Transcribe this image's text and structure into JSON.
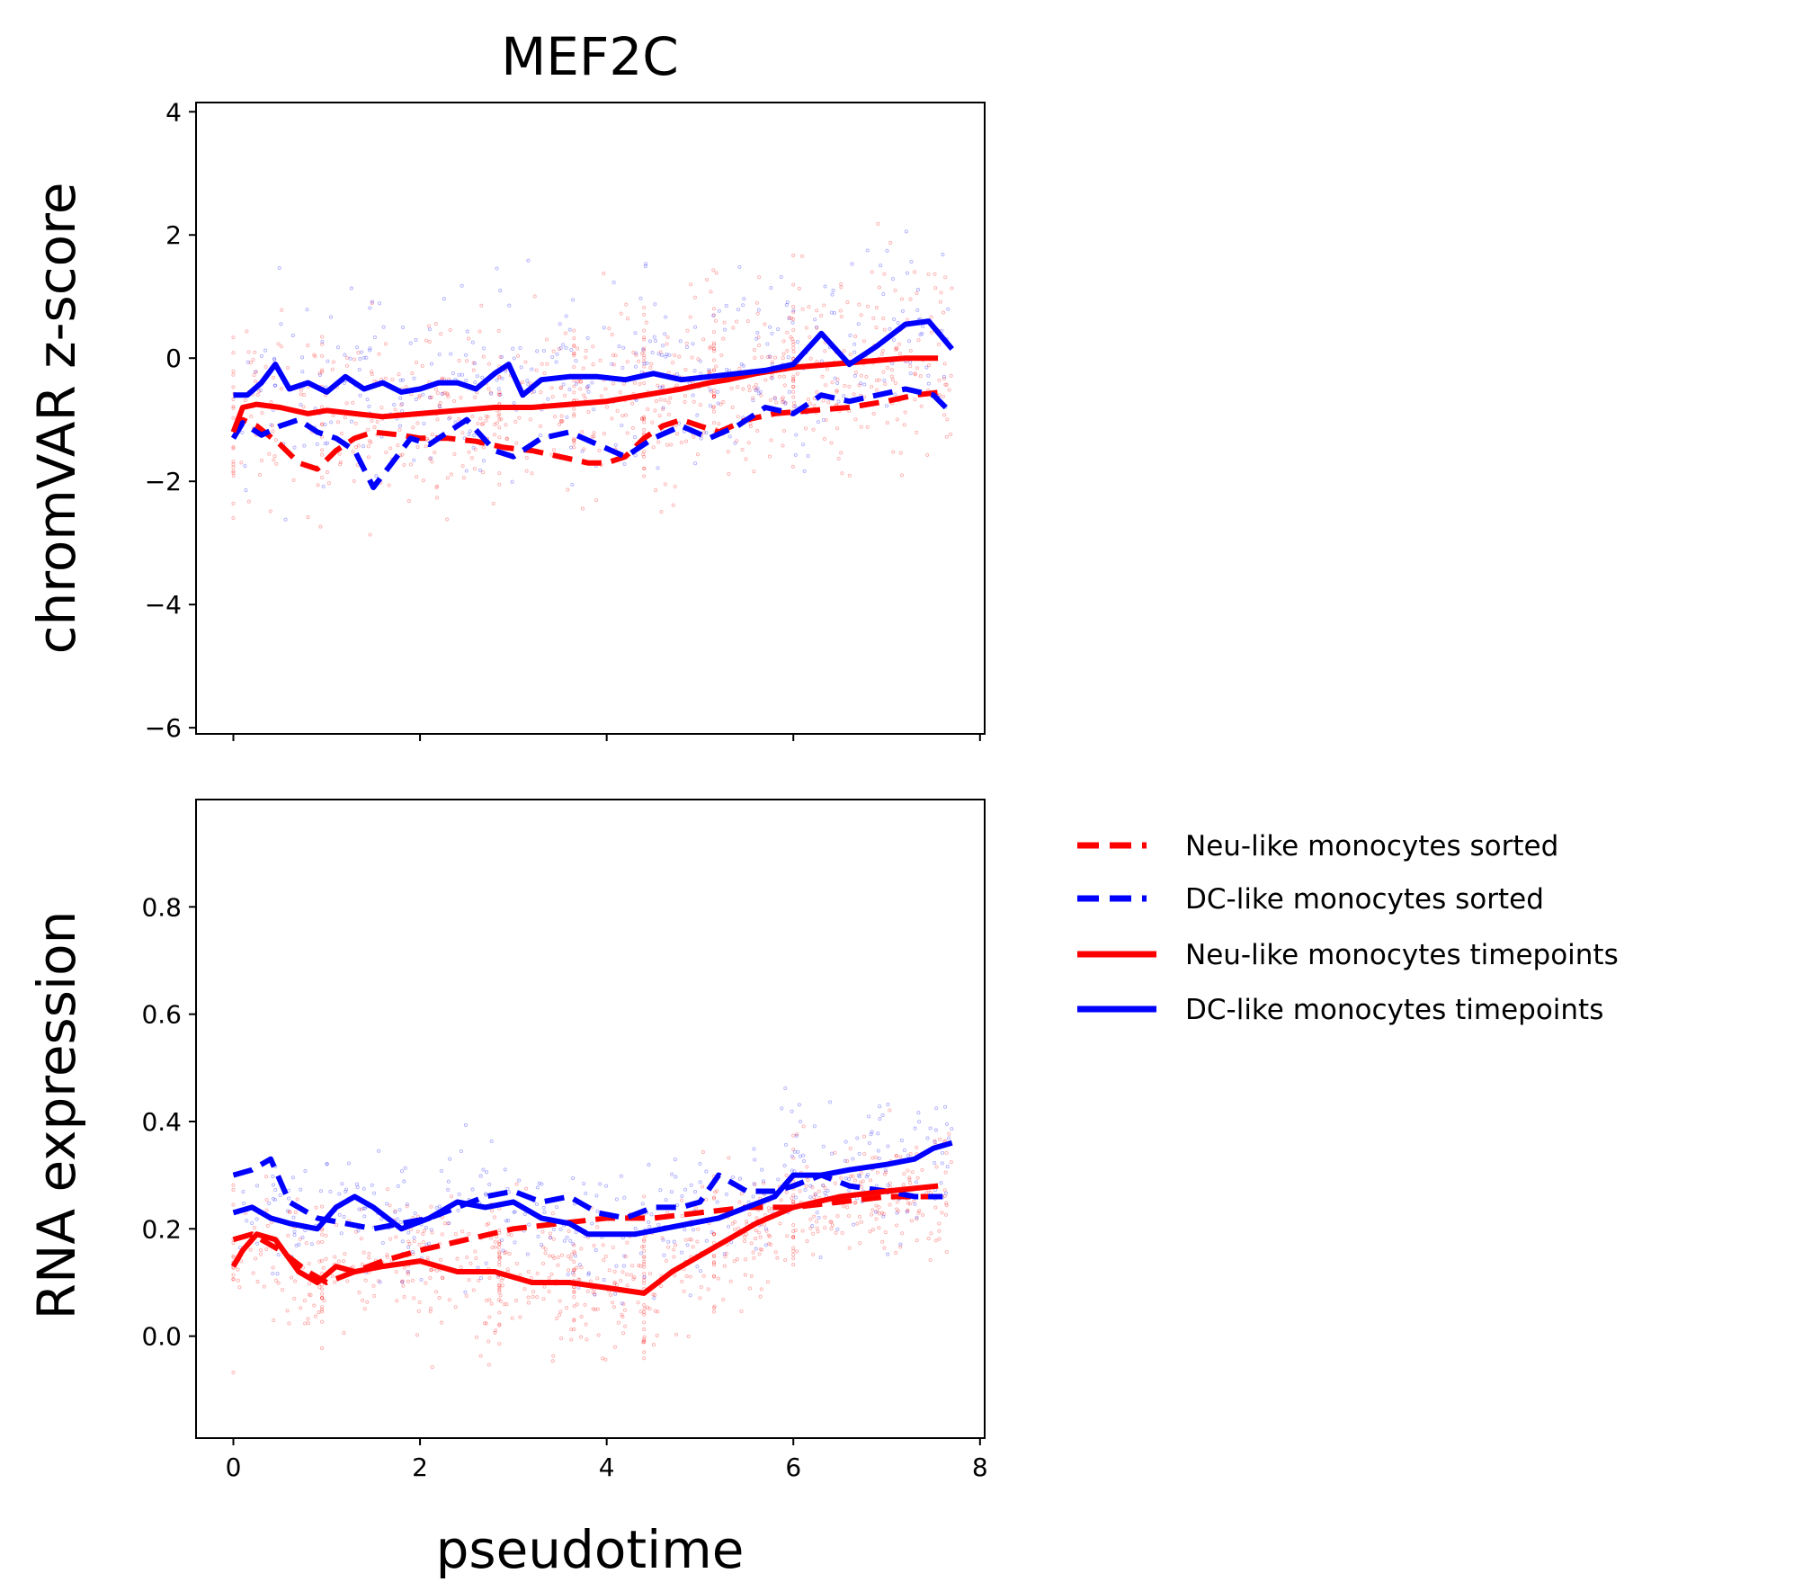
{
  "chart_data": [
    {
      "type": "line",
      "title": "MEF2C",
      "xlabel": "",
      "ylabel": "chromVAR z-score",
      "xlim": [
        -0.4,
        8.05
      ],
      "ylim": [
        -6.1,
        4.15
      ],
      "xticks": [
        0,
        2,
        4,
        6,
        8
      ],
      "yticks": [
        -6,
        -4,
        -2,
        0,
        2,
        4
      ],
      "ytick_labels": [
        "−6",
        "−4",
        "−2",
        "0",
        "2",
        "4"
      ],
      "grid": false,
      "scatter": {
        "n_points": 1200,
        "y_mean": -0.9,
        "y_sd": 1.35,
        "opacity": 0.3
      },
      "series": [
        {
          "name": "Neu-like monocytes sorted",
          "color": "#ff0000",
          "dash": "dashed",
          "x": [
            0,
            0.1,
            0.25,
            0.5,
            0.7,
            0.9,
            1.1,
            1.3,
            1.5,
            1.8,
            2.0,
            2.3,
            2.6,
            2.9,
            3.2,
            3.5,
            3.8,
            4.0,
            4.2,
            4.4,
            4.6,
            4.8,
            5.0,
            5.2,
            5.5,
            5.8,
            6.2,
            6.6,
            7.0,
            7.3,
            7.6
          ],
          "y": [
            -1.2,
            -1.0,
            -1.1,
            -1.4,
            -1.7,
            -1.8,
            -1.5,
            -1.3,
            -1.2,
            -1.25,
            -1.3,
            -1.3,
            -1.35,
            -1.45,
            -1.5,
            -1.6,
            -1.7,
            -1.7,
            -1.6,
            -1.3,
            -1.1,
            -1.0,
            -1.1,
            -1.2,
            -1.0,
            -0.9,
            -0.85,
            -0.8,
            -0.7,
            -0.6,
            -0.55
          ]
        },
        {
          "name": "DC-like monocytes sorted",
          "color": "#0000ff",
          "dash": "dashed",
          "x": [
            0,
            0.1,
            0.3,
            0.5,
            0.7,
            0.9,
            1.1,
            1.3,
            1.5,
            1.7,
            1.9,
            2.1,
            2.3,
            2.5,
            2.8,
            3.0,
            3.3,
            3.6,
            3.9,
            4.2,
            4.5,
            4.8,
            5.1,
            5.4,
            5.7,
            6.0,
            6.3,
            6.6,
            6.9,
            7.2,
            7.5,
            7.7
          ],
          "y": [
            -1.3,
            -1.05,
            -1.25,
            -1.1,
            -1.0,
            -1.2,
            -1.3,
            -1.5,
            -2.1,
            -1.7,
            -1.3,
            -1.4,
            -1.2,
            -1.0,
            -1.5,
            -1.6,
            -1.3,
            -1.2,
            -1.4,
            -1.6,
            -1.3,
            -1.1,
            -1.3,
            -1.1,
            -0.8,
            -0.9,
            -0.6,
            -0.7,
            -0.6,
            -0.5,
            -0.6,
            -0.9
          ]
        },
        {
          "name": "Neu-like monocytes timepoints",
          "color": "#ff0000",
          "dash": "solid",
          "x": [
            0,
            0.1,
            0.25,
            0.5,
            0.8,
            1.0,
            1.3,
            1.6,
            2.0,
            2.4,
            2.8,
            3.2,
            3.6,
            4.0,
            4.4,
            4.8,
            5.1,
            5.3,
            5.6,
            6.0,
            6.4,
            6.8,
            7.2,
            7.55
          ],
          "y": [
            -1.2,
            -0.8,
            -0.75,
            -0.8,
            -0.9,
            -0.85,
            -0.9,
            -0.95,
            -0.9,
            -0.85,
            -0.8,
            -0.8,
            -0.75,
            -0.7,
            -0.6,
            -0.5,
            -0.4,
            -0.35,
            -0.25,
            -0.15,
            -0.1,
            -0.05,
            0.0,
            0.0
          ]
        },
        {
          "name": "DC-like monocytes timepoints",
          "color": "#0000ff",
          "dash": "solid",
          "x": [
            0,
            0.15,
            0.3,
            0.45,
            0.6,
            0.8,
            1.0,
            1.2,
            1.4,
            1.6,
            1.8,
            2.0,
            2.2,
            2.4,
            2.6,
            2.8,
            2.95,
            3.1,
            3.3,
            3.6,
            3.9,
            4.2,
            4.5,
            4.8,
            5.1,
            5.4,
            5.7,
            6.0,
            6.3,
            6.6,
            6.9,
            7.2,
            7.45,
            7.7
          ],
          "y": [
            -0.6,
            -0.6,
            -0.4,
            -0.1,
            -0.5,
            -0.4,
            -0.55,
            -0.3,
            -0.5,
            -0.4,
            -0.55,
            -0.5,
            -0.4,
            -0.4,
            -0.5,
            -0.25,
            -0.1,
            -0.6,
            -0.35,
            -0.3,
            -0.3,
            -0.35,
            -0.25,
            -0.35,
            -0.3,
            -0.25,
            -0.2,
            -0.1,
            0.4,
            -0.1,
            0.2,
            0.55,
            0.6,
            0.15
          ]
        }
      ]
    },
    {
      "type": "line",
      "title": "",
      "xlabel": "pseudotime",
      "ylabel": "RNA expression",
      "xlim": [
        -0.4,
        8.05
      ],
      "ylim": [
        -0.19,
        1.0
      ],
      "xticks": [
        0,
        2,
        4,
        6,
        8
      ],
      "yticks": [
        0.0,
        0.2,
        0.4,
        0.6,
        0.8
      ],
      "ytick_labels": [
        "0.0",
        "0.2",
        "0.4",
        "0.6",
        "0.8"
      ],
      "grid": false,
      "scatter": {
        "n_points": 1200,
        "y_mean": 0.19,
        "y_sd": 0.11,
        "opacity": 0.3
      },
      "series": [
        {
          "name": "Neu-like monocytes sorted",
          "color": "#ff0000",
          "dash": "dashed",
          "x": [
            0,
            0.2,
            0.5,
            0.8,
            1.0,
            1.3,
            1.6,
            2.0,
            2.5,
            3.0,
            3.5,
            4.0,
            4.5,
            5.0,
            5.5,
            6.0,
            6.5,
            7.0,
            7.55
          ],
          "y": [
            0.18,
            0.19,
            0.16,
            0.12,
            0.1,
            0.12,
            0.14,
            0.16,
            0.18,
            0.2,
            0.21,
            0.22,
            0.22,
            0.23,
            0.24,
            0.24,
            0.25,
            0.26,
            0.26
          ]
        },
        {
          "name": "DC-like monocytes sorted",
          "color": "#0000ff",
          "dash": "dashed",
          "x": [
            0,
            0.2,
            0.4,
            0.6,
            0.9,
            1.2,
            1.5,
            1.8,
            2.1,
            2.4,
            2.7,
            3.0,
            3.3,
            3.6,
            3.9,
            4.2,
            4.5,
            4.8,
            5.0,
            5.2,
            5.5,
            5.8,
            6.0,
            6.3,
            6.6,
            7.0,
            7.3,
            7.6
          ],
          "y": [
            0.3,
            0.31,
            0.33,
            0.25,
            0.22,
            0.21,
            0.2,
            0.21,
            0.22,
            0.24,
            0.26,
            0.27,
            0.25,
            0.26,
            0.23,
            0.22,
            0.24,
            0.24,
            0.25,
            0.3,
            0.27,
            0.27,
            0.28,
            0.3,
            0.28,
            0.27,
            0.26,
            0.26
          ]
        },
        {
          "name": "Neu-like monocytes timepoints",
          "color": "#ff0000",
          "dash": "solid",
          "x": [
            0,
            0.1,
            0.25,
            0.45,
            0.7,
            0.9,
            1.1,
            1.3,
            1.6,
            2.0,
            2.4,
            2.8,
            3.2,
            3.6,
            4.0,
            4.4,
            4.7,
            5.0,
            5.3,
            5.6,
            6.0,
            6.5,
            7.0,
            7.55
          ],
          "y": [
            0.13,
            0.16,
            0.19,
            0.18,
            0.12,
            0.1,
            0.13,
            0.12,
            0.13,
            0.14,
            0.12,
            0.12,
            0.1,
            0.1,
            0.09,
            0.08,
            0.12,
            0.15,
            0.18,
            0.21,
            0.24,
            0.26,
            0.27,
            0.28
          ]
        },
        {
          "name": "DC-like monocytes timepoints",
          "color": "#0000ff",
          "dash": "solid",
          "x": [
            0,
            0.2,
            0.4,
            0.6,
            0.9,
            1.1,
            1.3,
            1.5,
            1.8,
            2.1,
            2.4,
            2.7,
            3.0,
            3.3,
            3.6,
            3.8,
            4.0,
            4.3,
            4.6,
            4.9,
            5.2,
            5.5,
            5.8,
            6.0,
            6.3,
            6.6,
            7.0,
            7.3,
            7.5,
            7.7
          ],
          "y": [
            0.23,
            0.24,
            0.22,
            0.21,
            0.2,
            0.24,
            0.26,
            0.24,
            0.2,
            0.22,
            0.25,
            0.24,
            0.25,
            0.22,
            0.21,
            0.19,
            0.19,
            0.19,
            0.2,
            0.21,
            0.22,
            0.24,
            0.26,
            0.3,
            0.3,
            0.31,
            0.32,
            0.33,
            0.35,
            0.36
          ]
        }
      ]
    }
  ],
  "legend": {
    "placement": "right",
    "entries": [
      {
        "label": "Neu-like monocytes sorted",
        "color": "#ff0000",
        "dash": "dashed"
      },
      {
        "label": "DC-like monocytes sorted",
        "color": "#0000ff",
        "dash": "dashed"
      },
      {
        "label": "Neu-like monocytes timepoints",
        "color": "#ff0000",
        "dash": "solid"
      },
      {
        "label": "DC-like monocytes timepoints",
        "color": "#0000ff",
        "dash": "solid"
      }
    ]
  }
}
